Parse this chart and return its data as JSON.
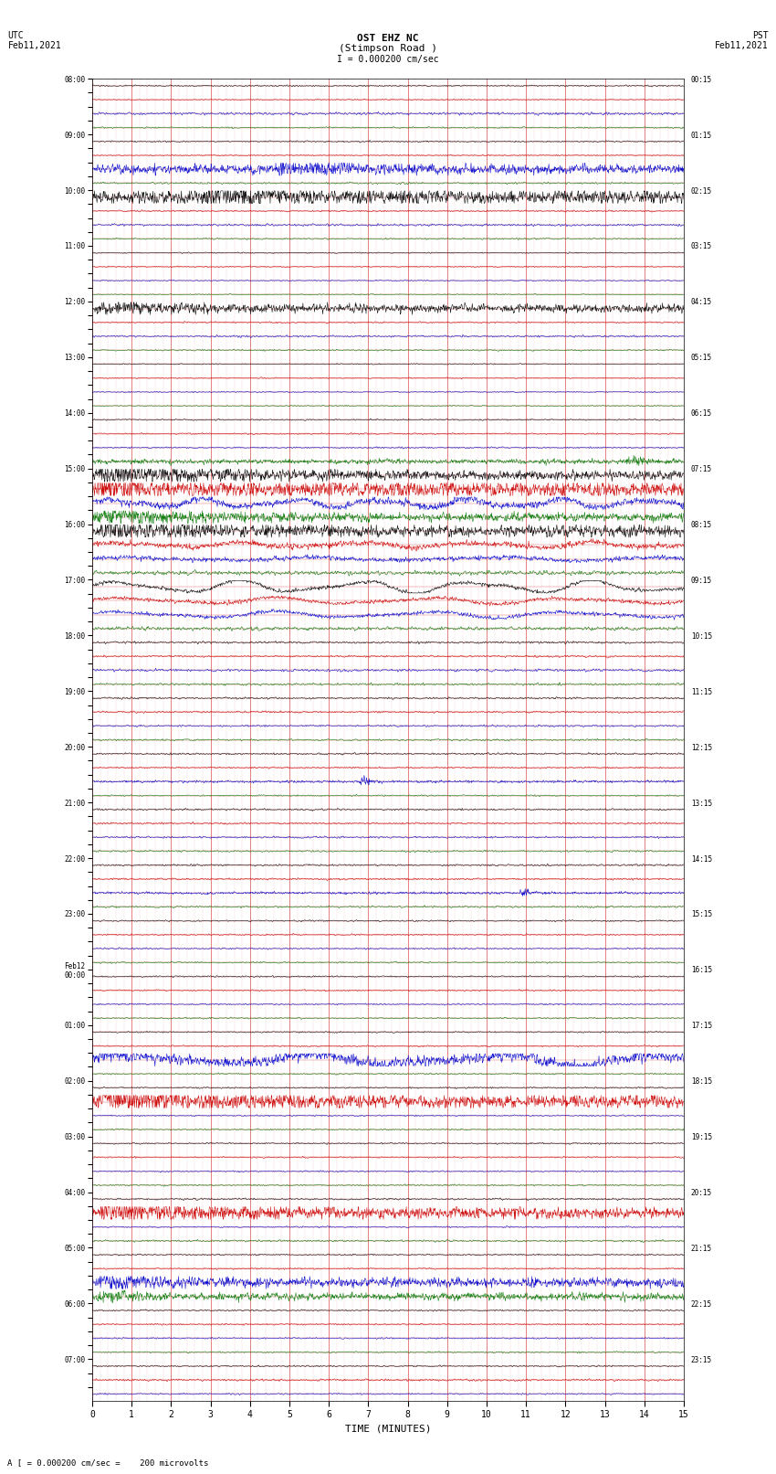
{
  "title_line1": "OST EHZ NC",
  "title_line2": "(Stimpson Road )",
  "title_line3": "I = 0.000200 cm/sec",
  "left_header_line1": "UTC",
  "left_header_line2": "Feb11,2021",
  "right_header_line1": "PST",
  "right_header_line2": "Feb11,2021",
  "xlabel": "TIME (MINUTES)",
  "footer": "A [ = 0.000200 cm/sec =    200 microvolts",
  "n_minutes": 15,
  "background_color": "#ffffff",
  "colors": {
    "black": "#000000",
    "red": "#cc0000",
    "blue": "#0000cc",
    "green": "#007700",
    "grid_major": "#cc0000",
    "grid_minor": "#cc0000"
  },
  "row_color_cycle": [
    "black",
    "red",
    "blue",
    "green"
  ],
  "utc_labels": [
    "08:00",
    "",
    "",
    "",
    "09:00",
    "",
    "",
    "",
    "10:00",
    "",
    "",
    "",
    "11:00",
    "",
    "",
    "",
    "12:00",
    "",
    "",
    "",
    "13:00",
    "",
    "",
    "",
    "14:00",
    "",
    "",
    "",
    "15:00",
    "",
    "",
    "",
    "16:00",
    "",
    "",
    "",
    "17:00",
    "",
    "",
    "",
    "18:00",
    "",
    "",
    "",
    "19:00",
    "",
    "",
    "",
    "20:00",
    "",
    "",
    "",
    "21:00",
    "",
    "",
    "",
    "22:00",
    "",
    "",
    "",
    "23:00",
    "",
    "",
    "",
    "Feb12\n00:00",
    "",
    "",
    "",
    "01:00",
    "",
    "",
    "",
    "02:00",
    "",
    "",
    "",
    "03:00",
    "",
    "",
    "",
    "04:00",
    "",
    "",
    "",
    "05:00",
    "",
    "",
    "",
    "06:00",
    "",
    "",
    "",
    "07:00",
    "",
    ""
  ],
  "pst_labels": [
    "00:15",
    "",
    "",
    "",
    "01:15",
    "",
    "",
    "",
    "02:15",
    "",
    "",
    "",
    "03:15",
    "",
    "",
    "",
    "04:15",
    "",
    "",
    "",
    "05:15",
    "",
    "",
    "",
    "06:15",
    "",
    "",
    "",
    "07:15",
    "",
    "",
    "",
    "08:15",
    "",
    "",
    "",
    "09:15",
    "",
    "",
    "",
    "10:15",
    "",
    "",
    "",
    "11:15",
    "",
    "",
    "",
    "12:15",
    "",
    "",
    "",
    "13:15",
    "",
    "",
    "",
    "14:15",
    "",
    "",
    "",
    "15:15",
    "",
    "",
    "",
    "16:15",
    "",
    "",
    "",
    "17:15",
    "",
    "",
    "",
    "18:15",
    "",
    "",
    "",
    "19:15",
    "",
    "",
    "",
    "20:15",
    "",
    "",
    "",
    "21:15",
    "",
    "",
    "",
    "22:15",
    "",
    "",
    "",
    "23:15",
    "",
    ""
  ],
  "n_rows": 95
}
